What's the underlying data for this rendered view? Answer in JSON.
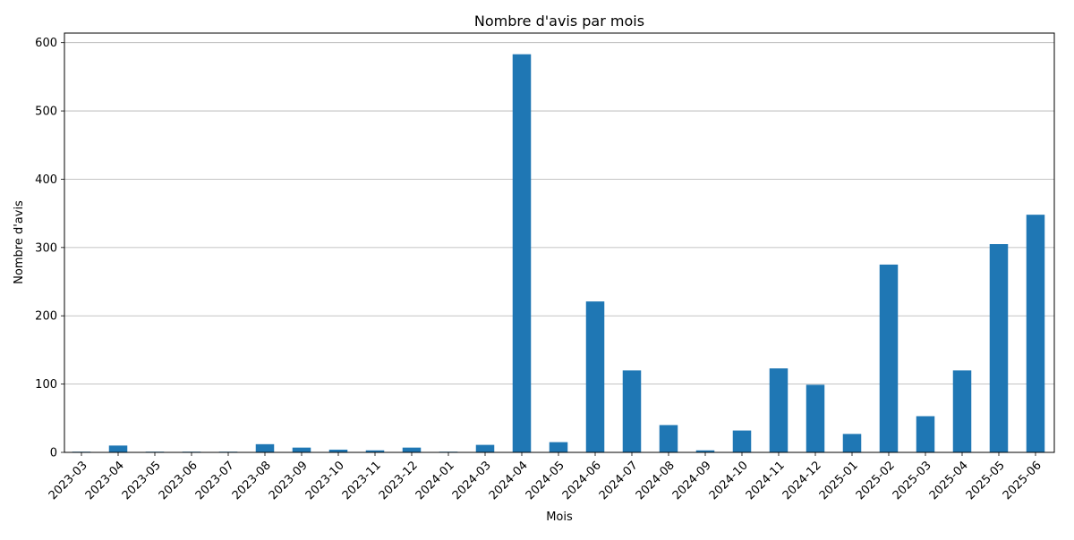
{
  "chart_data": {
    "type": "bar",
    "title": "Nombre d'avis par mois",
    "xlabel": "Mois",
    "ylabel": "Nombre d'avis",
    "categories": [
      "2023-03",
      "2023-04",
      "2023-05",
      "2023-06",
      "2023-07",
      "2023-08",
      "2023-09",
      "2023-10",
      "2023-11",
      "2023-12",
      "2024-01",
      "2024-03",
      "2024-04",
      "2024-05",
      "2024-06",
      "2024-07",
      "2024-08",
      "2024-09",
      "2024-10",
      "2024-11",
      "2024-12",
      "2025-01",
      "2025-02",
      "2025-03",
      "2025-04",
      "2025-05",
      "2025-06"
    ],
    "values": [
      1,
      10,
      1,
      1,
      1,
      12,
      7,
      4,
      3,
      7,
      1,
      11,
      583,
      15,
      221,
      120,
      40,
      3,
      32,
      123,
      99,
      27,
      275,
      53,
      120,
      305,
      348
    ],
    "ylim": [
      0,
      614
    ],
    "yticks": [
      0,
      100,
      200,
      300,
      400,
      500,
      600
    ],
    "grid": "horizontal",
    "bar_color": "#1f77b4",
    "grid_color": "#b0b0b0"
  }
}
